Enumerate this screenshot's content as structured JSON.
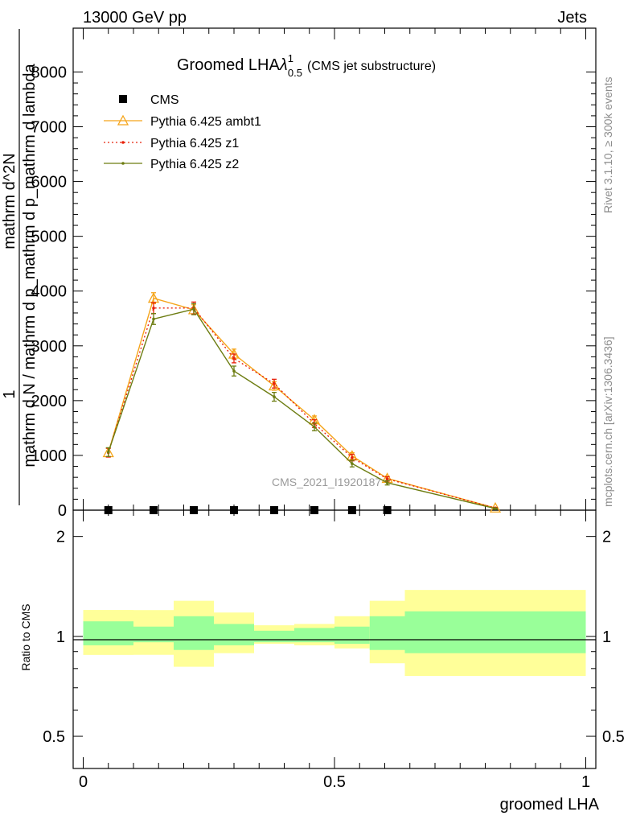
{
  "header": {
    "left": "13000 GeV pp",
    "right": "Jets"
  },
  "side": {
    "rivet": "Rivet 3.1.10, ≥ 300k events",
    "mcplots": "mcplots.cern.ch [arXiv:1306.3436]"
  },
  "chart_data": {
    "type": "line",
    "title": "Groomed LHA",
    "title_symbol": "λ",
    "title_sup": "1",
    "title_sub": "0.5",
    "subtitle": "(CMS jet substructure)",
    "watermark": "CMS_2021_I1920187",
    "ylabel_numerator": "1",
    "ylabel_denominator": "mathrm d N / mathrm d p_mathrm d p_mathrm d lambda",
    "ylabel_main": "mathrm d^2N",
    "ylabel_ratio": "Ratio to CMS",
    "xlabel": "groomed LHA",
    "xlim": [
      -0.02,
      1.02
    ],
    "ylim": [
      0,
      8800
    ],
    "ratio_ylim": [
      0.4,
      2.4
    ],
    "main_yticks": [
      0,
      1000,
      2000,
      3000,
      4000,
      5000,
      6000,
      7000,
      8000
    ],
    "main_ytick_labels": [
      "0",
      "1000",
      "2000",
      "3000",
      "4000",
      "5000",
      "6000",
      "7000",
      "8000"
    ],
    "xticks": [
      0,
      0.5,
      1
    ],
    "xtick_labels": [
      "0",
      "0.5",
      "1"
    ],
    "ratio_yticks": [
      0.5,
      1,
      2
    ],
    "ratio_ytick_labels": [
      "0.5",
      "1",
      "2"
    ],
    "legend_position": "top-left",
    "data": {
      "name": "CMS",
      "x": [
        0.05,
        0.14,
        0.22,
        0.3,
        0.38,
        0.46,
        0.535,
        0.605
      ],
      "y": [
        0,
        0,
        0,
        0,
        0,
        0,
        0,
        0
      ]
    },
    "series": [
      {
        "name": "Pythia 6.425 ambt1",
        "color": "#f5a51b",
        "style": "solid-triangle",
        "x": [
          0.05,
          0.14,
          0.22,
          0.3,
          0.38,
          0.46,
          0.535,
          0.605,
          0.82
        ],
        "y": [
          1050,
          3870,
          3660,
          2850,
          2270,
          1650,
          990,
          580,
          40
        ],
        "err": [
          80,
          100,
          90,
          90,
          80,
          70,
          60,
          40,
          10
        ]
      },
      {
        "name": "Pythia 6.425 z1",
        "color": "#e8220b",
        "style": "dotted",
        "x": [
          0.05,
          0.14,
          0.22,
          0.3,
          0.38,
          0.46,
          0.535,
          0.605,
          0.82
        ],
        "y": [
          1050,
          3690,
          3690,
          2770,
          2310,
          1580,
          960,
          570,
          40
        ],
        "err": [
          80,
          100,
          110,
          80,
          80,
          70,
          60,
          40,
          10
        ]
      },
      {
        "name": "Pythia 6.425 z2",
        "color": "#6d7d12",
        "style": "solid-dot",
        "x": [
          0.05,
          0.14,
          0.22,
          0.3,
          0.38,
          0.46,
          0.535,
          0.605,
          0.82
        ],
        "y": [
          1060,
          3490,
          3670,
          2540,
          2070,
          1520,
          850,
          500,
          30
        ],
        "err": [
          80,
          100,
          100,
          90,
          80,
          70,
          60,
          40,
          10
        ]
      }
    ],
    "bands": [
      {
        "x0": 0.0,
        "x1": 0.18,
        "stat": [
          0.94,
          1.11
        ],
        "total": [
          0.88,
          1.2
        ]
      },
      {
        "x0": 0.18,
        "x1": 0.18,
        "stat": [
          0.94,
          1.11
        ],
        "total": [
          0.88,
          1.2
        ]
      },
      {
        "x0": 0.0,
        "x1": 0.1,
        "stat": [
          0.94,
          1.11
        ],
        "total": [
          0.88,
          1.2
        ]
      },
      {
        "x0": 0.1,
        "x1": 0.18,
        "stat": [
          0.96,
          1.07
        ],
        "total": [
          0.92,
          1.14
        ]
      },
      {
        "x0": 0.18,
        "x1": 0.26,
        "stat": [
          0.91,
          1.15
        ],
        "total": [
          0.81,
          1.28
        ]
      },
      {
        "x0": 0.26,
        "x1": 0.34,
        "stat": [
          0.94,
          1.09
        ],
        "total": [
          0.89,
          1.18
        ]
      },
      {
        "x0": 0.34,
        "x1": 0.42,
        "stat": [
          0.96,
          1.04
        ],
        "total": [
          0.95,
          1.08
        ]
      },
      {
        "x0": 0.42,
        "x1": 0.5,
        "stat": [
          0.96,
          1.06
        ],
        "total": [
          0.94,
          1.09
        ]
      },
      {
        "x0": 0.5,
        "x1": 0.57,
        "stat": [
          0.95,
          1.07
        ],
        "total": [
          0.92,
          1.15
        ]
      },
      {
        "x0": 0.57,
        "x1": 0.64,
        "stat": [
          0.91,
          1.15
        ],
        "total": [
          0.83,
          1.28
        ]
      },
      {
        "x0": 0.64,
        "x1": 1.0,
        "stat": [
          0.89,
          1.19
        ],
        "total": [
          0.76,
          1.38
        ]
      }
    ],
    "grid": false
  }
}
